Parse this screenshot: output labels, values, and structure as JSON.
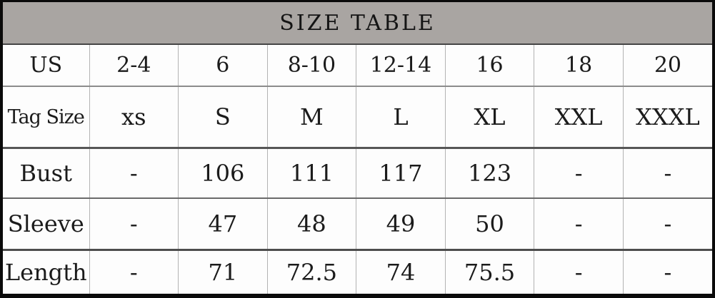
{
  "title": "SIZE TABLE",
  "colors": {
    "frame_border": "#0a0a0a",
    "title_bar_bg": "#a9a5a2",
    "text": "#1b1b1b",
    "grid_vertical": "#b3b3b3",
    "grid_horizontal": "#565656"
  },
  "chart_data": {
    "type": "table",
    "title": "SIZE TABLE",
    "columns": [
      "US",
      "2-4",
      "6",
      "8-10",
      "12-14",
      "16",
      "18",
      "20"
    ],
    "rows": [
      {
        "label": "Tag Size",
        "values": [
          "xs",
          "S",
          "M",
          "L",
          "XL",
          "XXL",
          "XXXL"
        ]
      },
      {
        "label": "Bust",
        "values": [
          "-",
          "106",
          "111",
          "117",
          "123",
          "-",
          "-"
        ]
      },
      {
        "label": "Sleeve",
        "values": [
          "-",
          "47",
          "48",
          "49",
          "50",
          "-",
          "-"
        ]
      },
      {
        "label": "Length",
        "values": [
          "-",
          "71",
          "72.5",
          "74",
          "75.5",
          "-",
          "-"
        ]
      }
    ]
  }
}
